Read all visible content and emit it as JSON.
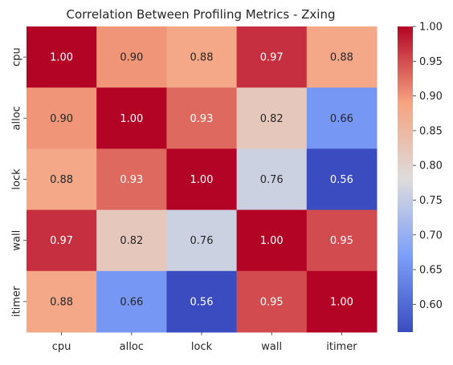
{
  "chart_data": {
    "type": "heatmap",
    "title": "Correlation Between Profiling Metrics - Zxing",
    "rows": [
      "cpu",
      "alloc",
      "lock",
      "wall",
      "itimer"
    ],
    "columns": [
      "cpu",
      "alloc",
      "lock",
      "wall",
      "itimer"
    ],
    "values": [
      [
        1.0,
        0.9,
        0.88,
        0.97,
        0.88
      ],
      [
        0.9,
        1.0,
        0.93,
        0.82,
        0.66
      ],
      [
        0.88,
        0.93,
        1.0,
        0.76,
        0.56
      ],
      [
        0.97,
        0.82,
        0.76,
        1.0,
        0.95
      ],
      [
        0.88,
        0.66,
        0.56,
        0.95,
        1.0
      ]
    ],
    "value_labels": [
      [
        "1.00",
        "0.90",
        "0.88",
        "0.97",
        "0.88"
      ],
      [
        "0.90",
        "1.00",
        "0.93",
        "0.82",
        "0.66"
      ],
      [
        "0.88",
        "0.93",
        "1.00",
        "0.76",
        "0.56"
      ],
      [
        "0.97",
        "0.82",
        "0.76",
        "1.00",
        "0.95"
      ],
      [
        "0.88",
        "0.66",
        "0.56",
        "0.95",
        "1.00"
      ]
    ],
    "colormap": "coolwarm",
    "color_range": [
      0.56,
      1.0
    ],
    "colorbar_ticks": [
      0.6,
      0.65,
      0.7,
      0.75,
      0.8,
      0.85,
      0.9,
      0.95,
      1.0
    ],
    "colorbar_tick_labels": [
      "0.60",
      "0.65",
      "0.70",
      "0.75",
      "0.80",
      "0.85",
      "0.90",
      "0.95",
      "1.00"
    ],
    "grid": false,
    "colorbar_position": "right"
  }
}
